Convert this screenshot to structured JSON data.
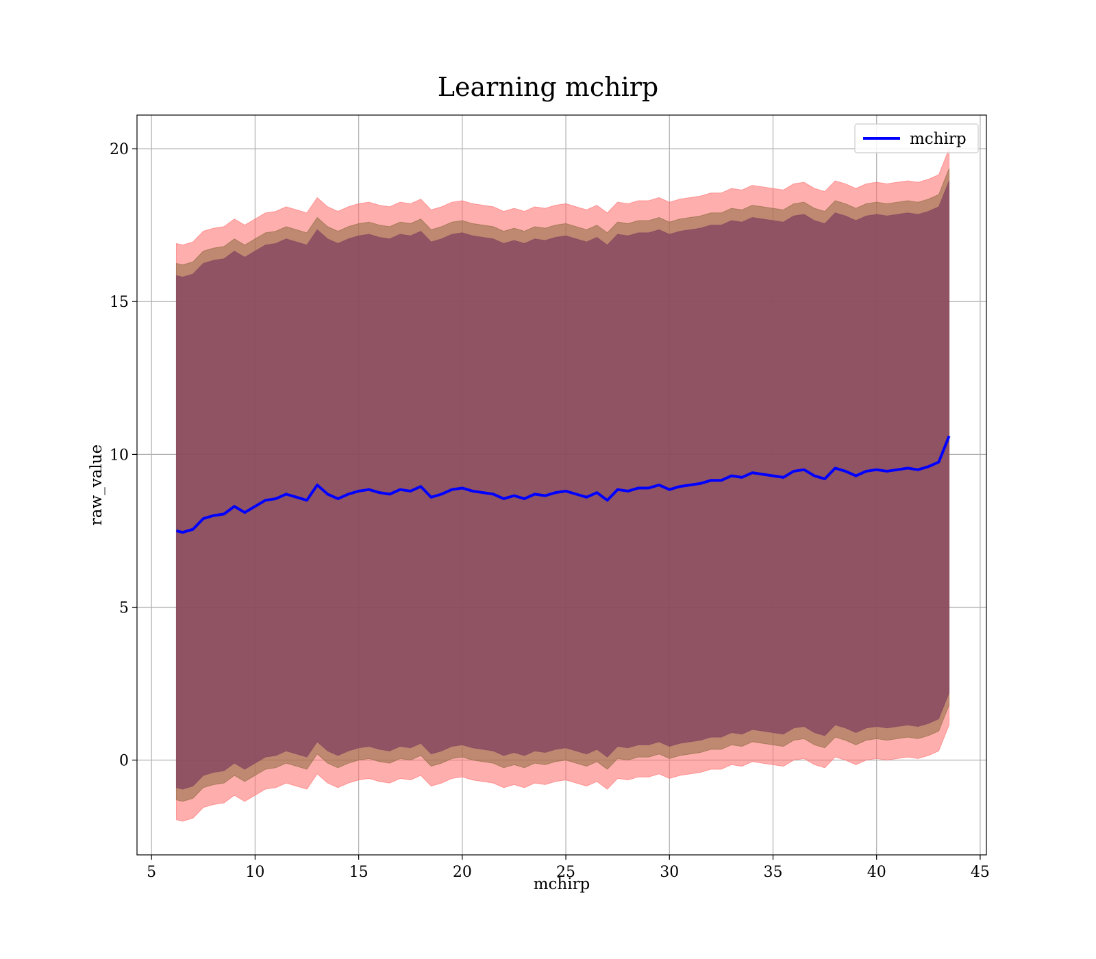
{
  "chart_data": {
    "type": "area",
    "title": "Learning mchirp",
    "xlabel": "mchirp",
    "ylabel": "raw_value",
    "xlim": [
      4.3,
      45.3
    ],
    "ylim": [
      -3.1,
      21.1
    ],
    "x_ticks": [
      5,
      10,
      15,
      20,
      25,
      30,
      35,
      40,
      45
    ],
    "y_ticks": [
      0,
      5,
      10,
      15,
      20
    ],
    "x_tick_labels": [
      "5",
      "10",
      "15",
      "20",
      "25",
      "30",
      "35",
      "40",
      "45"
    ],
    "y_tick_labels": [
      "0",
      "5",
      "10",
      "15",
      "20"
    ],
    "grid": true,
    "legend": {
      "position": "top-right",
      "entries": [
        {
          "label": "mchirp",
          "color": "#0000ff"
        }
      ]
    },
    "x": [
      6.2,
      6.5,
      7.0,
      7.5,
      8.0,
      8.5,
      9.0,
      9.5,
      10.0,
      10.5,
      11.0,
      11.5,
      12.0,
      12.5,
      13.0,
      13.5,
      14.0,
      14.5,
      15.0,
      15.5,
      16.0,
      16.5,
      17.0,
      17.5,
      18.0,
      18.5,
      19.0,
      19.5,
      20.0,
      20.5,
      21.0,
      21.5,
      22.0,
      22.5,
      23.0,
      23.5,
      24.0,
      24.5,
      25.0,
      25.5,
      26.0,
      26.5,
      27.0,
      27.5,
      28.0,
      28.5,
      29.0,
      29.5,
      30.0,
      30.5,
      31.0,
      31.5,
      32.0,
      32.5,
      33.0,
      33.5,
      34.0,
      34.5,
      35.0,
      35.5,
      36.0,
      36.5,
      37.0,
      37.5,
      38.0,
      38.5,
      39.0,
      39.5,
      40.0,
      40.5,
      41.0,
      41.5,
      42.0,
      42.5,
      43.0,
      43.5
    ],
    "series": [
      {
        "name": "mchirp",
        "color": "#0000ff",
        "values": [
          7.5,
          7.45,
          7.55,
          7.9,
          8.0,
          8.05,
          8.3,
          8.1,
          8.3,
          8.5,
          8.55,
          8.7,
          8.6,
          8.5,
          9.0,
          8.7,
          8.55,
          8.7,
          8.8,
          8.85,
          8.75,
          8.7,
          8.85,
          8.8,
          8.95,
          8.6,
          8.7,
          8.85,
          8.9,
          8.8,
          8.75,
          8.7,
          8.55,
          8.65,
          8.55,
          8.7,
          8.65,
          8.75,
          8.8,
          8.7,
          8.6,
          8.75,
          8.5,
          8.85,
          8.8,
          8.9,
          8.9,
          9.0,
          8.85,
          8.95,
          9.0,
          9.05,
          9.15,
          9.15,
          9.3,
          9.25,
          9.4,
          9.35,
          9.3,
          9.25,
          9.45,
          9.5,
          9.3,
          9.2,
          9.55,
          9.45,
          9.3,
          9.45,
          9.5,
          9.45,
          9.5,
          9.55,
          9.5,
          9.6,
          9.75,
          10.6
        ]
      }
    ],
    "bands": [
      {
        "label": "",
        "color": "#ff6b6b",
        "opacity": 0.55,
        "lower_offset": -9.45,
        "upper_offset": 9.4
      },
      {
        "label": "",
        "color": "#8b6a3e",
        "opacity": 0.55,
        "lower_offset": -8.8,
        "upper_offset": 8.75
      },
      {
        "label": "",
        "color": "#804260",
        "opacity": 0.75,
        "lower_offset": -8.4,
        "upper_offset": 8.35
      }
    ]
  }
}
